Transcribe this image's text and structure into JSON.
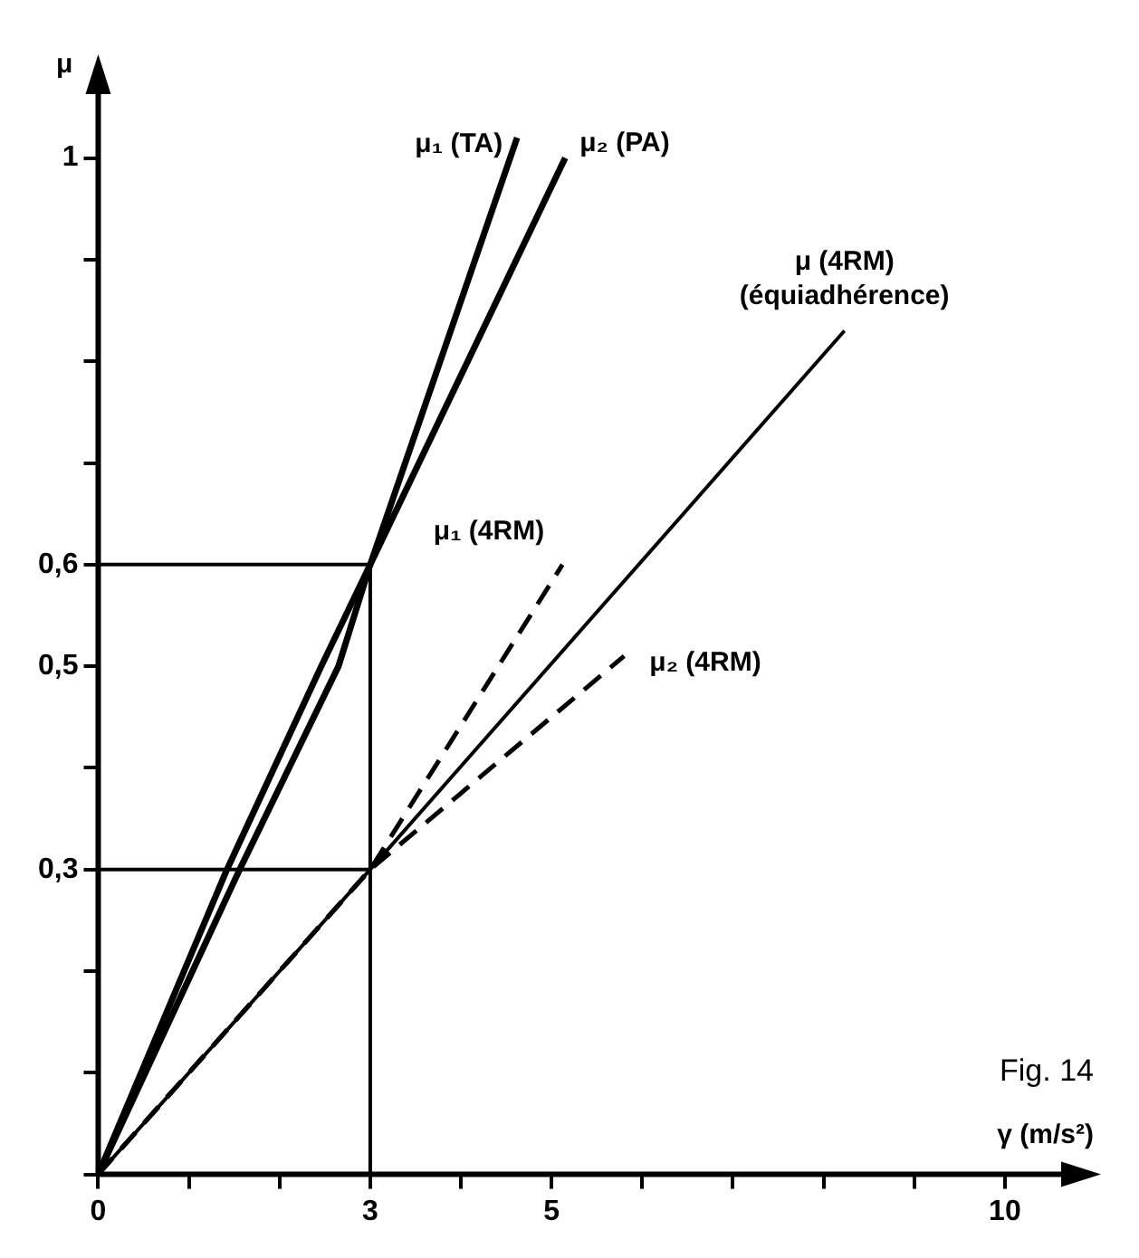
{
  "chart_data": {
    "type": "line",
    "xlabel": "γ (m/s²)",
    "ylabel": "μ",
    "annotations": [
      "Fig. 14"
    ],
    "xlim": [
      0,
      10.7
    ],
    "ylim": [
      0,
      1.07
    ],
    "xticks": [
      0,
      {
        "value": 1,
        "label": null
      },
      {
        "value": 2,
        "label": null
      },
      3,
      {
        "value": 4,
        "label": null
      },
      5,
      {
        "value": 6,
        "label": null
      },
      {
        "value": 7,
        "label": null
      },
      {
        "value": 8,
        "label": null
      },
      {
        "value": 9,
        "label": null
      },
      10
    ],
    "yticks": [
      {
        "value": 0,
        "label": null
      },
      {
        "value": 0.1,
        "label": null
      },
      {
        "value": 0.2,
        "label": null
      },
      {
        "value": 0.3,
        "label": "0,3"
      },
      {
        "value": 0.4,
        "label": null
      },
      {
        "value": 0.5,
        "label": "0,5"
      },
      {
        "value": 0.6,
        "label": "0,6"
      },
      {
        "value": 0.7,
        "label": null
      },
      {
        "value": 0.8,
        "label": null
      },
      {
        "value": 0.9,
        "label": null
      },
      1
    ],
    "grid": false,
    "legend": false,
    "marker": "none",
    "series": [
      {
        "name": "μ₁ (TA)",
        "color": "#000000",
        "line_style": "solid",
        "x": [
          0,
          1.42,
          2.46,
          3,
          4.62
        ],
        "values": [
          0,
          0.3,
          0.5,
          0.6,
          1.02
        ]
      },
      {
        "name": "μ₂ (PA)",
        "color": "#000000",
        "line_style": "solid",
        "x": [
          0,
          1.56,
          2.65,
          3,
          5.15
        ],
        "values": [
          0,
          0.3,
          0.5,
          0.6,
          1.0
        ]
      },
      {
        "name": "μ (4RM) (équiadhérence)",
        "color": "#000000",
        "line_style": "solid",
        "x": [
          0,
          3,
          8.23
        ],
        "values": [
          0,
          0.3,
          0.83
        ]
      },
      {
        "name": "μ₁ (4RM)",
        "color": "#000000",
        "line_style": "dashed",
        "x": [
          0,
          3,
          5.12
        ],
        "values": [
          0,
          0.3,
          0.6
        ]
      },
      {
        "name": "μ₂ (4RM)",
        "color": "#000000",
        "line_style": "dashed",
        "x": [
          0,
          3,
          5.8
        ],
        "values": [
          0,
          0.3,
          0.51
        ]
      }
    ],
    "ref_lines": [
      {
        "axis": "y",
        "value": 0.6,
        "color": "#000000"
      },
      {
        "axis": "y",
        "value": 0.3,
        "color": "#000000"
      },
      {
        "axis": "x",
        "value": 3,
        "color": "#000000"
      }
    ]
  }
}
